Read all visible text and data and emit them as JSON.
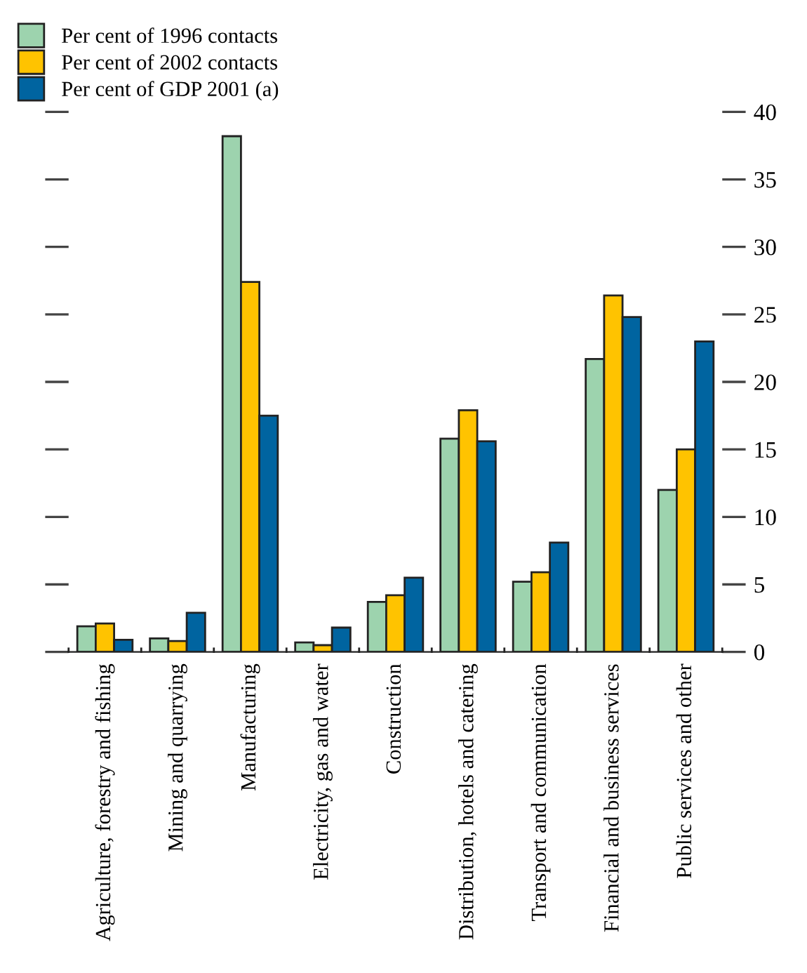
{
  "chart_data": {
    "type": "bar",
    "categories": [
      "Agriculture, forestry and fishing",
      "Mining and quarrying",
      "Manufacturing",
      "Electricity, gas and water",
      "Construction",
      "Distribution, hotels and catering",
      "Transport and communication",
      "Financial and business services",
      "Public services and other"
    ],
    "series": [
      {
        "name": "Per cent of 1996 contacts",
        "color": "#9dd3ae",
        "values": [
          1.9,
          1.0,
          38.2,
          0.7,
          3.7,
          15.8,
          5.2,
          21.7,
          12.0
        ]
      },
      {
        "name": "Per cent of 2002 contacts",
        "color": "#ffc300",
        "values": [
          2.1,
          0.8,
          27.4,
          0.5,
          4.2,
          17.9,
          5.9,
          26.4,
          15.0
        ]
      },
      {
        "name": "Per cent of GDP 2001 (a)",
        "color": "#0064a0",
        "values": [
          0.9,
          2.9,
          17.5,
          1.8,
          5.5,
          15.6,
          8.1,
          24.8,
          23.0
        ]
      }
    ],
    "ylim": [
      0,
      40
    ],
    "yticks": [
      0,
      5,
      10,
      15,
      20,
      25,
      30,
      35,
      40
    ],
    "grid": false,
    "legend": "top left"
  }
}
